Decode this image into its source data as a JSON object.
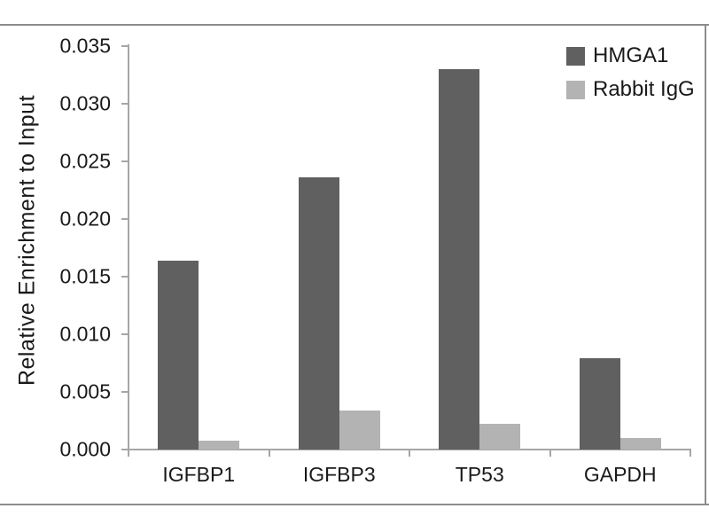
{
  "figure": {
    "background": "#ffffff",
    "border_color": "#8c8c8c",
    "text_color": "#1a1a1a"
  },
  "chart_data": {
    "type": "bar",
    "title": "",
    "xlabel": "",
    "ylabel": "Relative Enrichment to Input",
    "categories": [
      "IGFBP1",
      "IGFBP3",
      "TP53",
      "GAPDH"
    ],
    "series": [
      {
        "name": "HMGA1",
        "color": "#606060",
        "values": [
          0.0164,
          0.0236,
          0.033,
          0.0079
        ]
      },
      {
        "name": "Rabbit IgG",
        "color": "#b3b3b3",
        "values": [
          0.0008,
          0.0034,
          0.0022,
          0.001
        ]
      }
    ],
    "ylim": [
      0,
      0.035
    ],
    "ytick_step": 0.005,
    "ytick_labels": [
      "0.000",
      "0.005",
      "0.010",
      "0.015",
      "0.020",
      "0.025",
      "0.030",
      "0.035"
    ],
    "grid": false,
    "legend_position": "top-right",
    "axis_color": "#a6a6a6"
  }
}
